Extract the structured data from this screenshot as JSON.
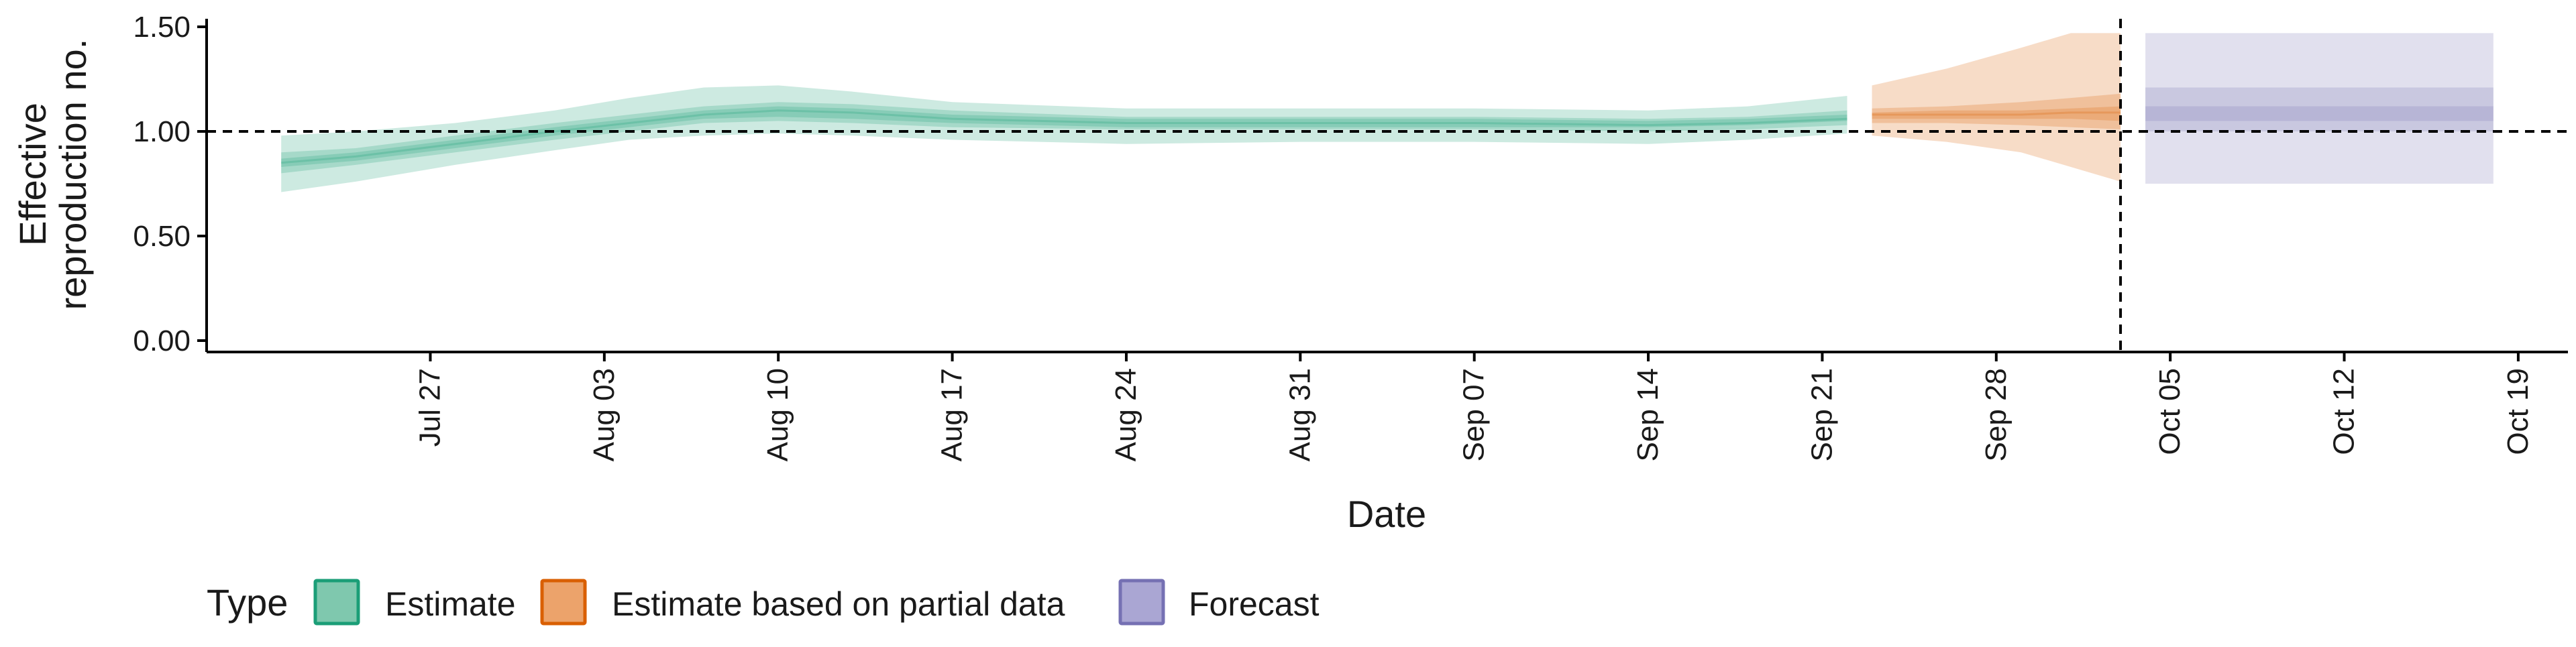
{
  "chart_data": {
    "type": "area",
    "ylabel_lines": [
      "Effective",
      "reproduction no."
    ],
    "xlabel": "Date",
    "ylim": [
      0,
      1.55
    ],
    "y_ticks": [
      0,
      0.5,
      1.0,
      1.5
    ],
    "y_tick_labels": [
      "0.00",
      "0.50",
      "1.00",
      "1.50"
    ],
    "x_range": [
      "2020-07-18",
      "2020-10-21"
    ],
    "x_ticks": [
      "2020-07-27",
      "2020-08-03",
      "2020-08-10",
      "2020-08-17",
      "2020-08-24",
      "2020-08-31",
      "2020-09-07",
      "2020-09-14",
      "2020-09-21",
      "2020-09-28",
      "2020-10-05",
      "2020-10-12",
      "2020-10-19"
    ],
    "x_tick_labels": [
      "Jul 27",
      "Aug 03",
      "Aug 10",
      "Aug 17",
      "Aug 24",
      "Aug 31",
      "Sep 07",
      "Sep 14",
      "Sep 21",
      "Sep 28",
      "Oct 05",
      "Oct 12",
      "Oct 19"
    ],
    "reference_line_y": 1.0,
    "forecast_start_date": "2020-10-03",
    "legend": {
      "title": "Type",
      "position": "bottom",
      "entries": [
        {
          "label": "Estimate",
          "fill": "#7fc8ae",
          "stroke": "#1b9e77"
        },
        {
          "label": "Estimate based on partial data",
          "fill": "#eca36b",
          "stroke": "#d95f02"
        },
        {
          "label": "Forecast",
          "fill": "#aaa6d3",
          "stroke": "#7570b3"
        }
      ]
    },
    "series": [
      {
        "name": "Estimate",
        "color": "#1b9e77",
        "points": [
          {
            "date": "2020-07-21",
            "lo90": 0.71,
            "lo50": 0.8,
            "lo20": 0.83,
            "median": 0.85,
            "hi20": 0.87,
            "hi50": 0.9,
            "hi90": 0.98
          },
          {
            "date": "2020-07-24",
            "lo90": 0.76,
            "lo50": 0.84,
            "lo20": 0.86,
            "median": 0.88,
            "hi20": 0.9,
            "hi50": 0.92,
            "hi90": 1.0
          },
          {
            "date": "2020-07-28",
            "lo90": 0.84,
            "lo50": 0.9,
            "lo20": 0.92,
            "median": 0.94,
            "hi20": 0.96,
            "hi50": 0.98,
            "hi90": 1.04
          },
          {
            "date": "2020-08-01",
            "lo90": 0.91,
            "lo50": 0.96,
            "lo20": 0.98,
            "median": 1.0,
            "hi20": 1.02,
            "hi50": 1.04,
            "hi90": 1.1
          },
          {
            "date": "2020-08-04",
            "lo90": 0.96,
            "lo50": 1.0,
            "lo20": 1.02,
            "median": 1.04,
            "hi20": 1.06,
            "hi50": 1.08,
            "hi90": 1.16
          },
          {
            "date": "2020-08-07",
            "lo90": 0.98,
            "lo50": 1.04,
            "lo20": 1.06,
            "median": 1.08,
            "hi20": 1.1,
            "hi50": 1.12,
            "hi90": 1.21
          },
          {
            "date": "2020-08-10",
            "lo90": 0.99,
            "lo50": 1.05,
            "lo20": 1.07,
            "median": 1.1,
            "hi20": 1.12,
            "hi50": 1.14,
            "hi90": 1.22
          },
          {
            "date": "2020-08-13",
            "lo90": 0.98,
            "lo50": 1.04,
            "lo20": 1.06,
            "median": 1.09,
            "hi20": 1.11,
            "hi50": 1.13,
            "hi90": 1.19
          },
          {
            "date": "2020-08-17",
            "lo90": 0.96,
            "lo50": 1.02,
            "lo20": 1.04,
            "median": 1.06,
            "hi20": 1.08,
            "hi50": 1.1,
            "hi90": 1.14
          },
          {
            "date": "2020-08-24",
            "lo90": 0.94,
            "lo50": 1.01,
            "lo20": 1.02,
            "median": 1.04,
            "hi20": 1.06,
            "hi50": 1.07,
            "hi90": 1.11
          },
          {
            "date": "2020-08-31",
            "lo90": 0.95,
            "lo50": 1.01,
            "lo20": 1.02,
            "median": 1.04,
            "hi20": 1.06,
            "hi50": 1.07,
            "hi90": 1.11
          },
          {
            "date": "2020-09-07",
            "lo90": 0.95,
            "lo50": 1.01,
            "lo20": 1.02,
            "median": 1.04,
            "hi20": 1.06,
            "hi50": 1.07,
            "hi90": 1.11
          },
          {
            "date": "2020-09-14",
            "lo90": 0.94,
            "lo50": 1.0,
            "lo20": 1.02,
            "median": 1.03,
            "hi20": 1.05,
            "hi50": 1.06,
            "hi90": 1.1
          },
          {
            "date": "2020-09-18",
            "lo90": 0.96,
            "lo50": 1.01,
            "lo20": 1.03,
            "median": 1.04,
            "hi20": 1.06,
            "hi50": 1.07,
            "hi90": 1.12
          },
          {
            "date": "2020-09-22",
            "lo90": 0.99,
            "lo50": 1.03,
            "lo20": 1.05,
            "median": 1.06,
            "hi20": 1.08,
            "hi50": 1.1,
            "hi90": 1.17
          }
        ]
      },
      {
        "name": "Estimate based on partial data",
        "color": "#d95f02",
        "points": [
          {
            "date": "2020-09-23",
            "lo90": 0.98,
            "lo50": 1.04,
            "lo20": 1.06,
            "median": 1.08,
            "hi20": 1.09,
            "hi50": 1.11,
            "hi90": 1.22
          },
          {
            "date": "2020-09-26",
            "lo90": 0.95,
            "lo50": 1.04,
            "lo20": 1.06,
            "median": 1.08,
            "hi20": 1.1,
            "hi50": 1.12,
            "hi90": 1.3
          },
          {
            "date": "2020-09-29",
            "lo90": 0.9,
            "lo50": 1.03,
            "lo20": 1.06,
            "median": 1.08,
            "hi20": 1.1,
            "hi50": 1.14,
            "hi90": 1.4
          },
          {
            "date": "2020-10-01",
            "lo90": 0.83,
            "lo50": 1.02,
            "lo20": 1.06,
            "median": 1.09,
            "hi20": 1.11,
            "hi50": 1.16,
            "hi90": 1.47
          },
          {
            "date": "2020-10-03",
            "lo90": 0.76,
            "lo50": 1.01,
            "lo20": 1.05,
            "median": 1.09,
            "hi20": 1.12,
            "hi50": 1.18,
            "hi90": 1.47
          }
        ]
      },
      {
        "name": "Forecast",
        "color": "#7570b3",
        "points": [
          {
            "date": "2020-10-04",
            "lo90": 0.75,
            "lo50": 1.0,
            "lo20": 1.05,
            "median": 1.1,
            "hi20": 1.12,
            "hi50": 1.21,
            "hi90": 1.47
          },
          {
            "date": "2020-10-18",
            "lo90": 0.75,
            "lo50": 1.0,
            "lo20": 1.05,
            "median": 1.1,
            "hi20": 1.12,
            "hi50": 1.21,
            "hi90": 1.47
          }
        ]
      }
    ]
  }
}
